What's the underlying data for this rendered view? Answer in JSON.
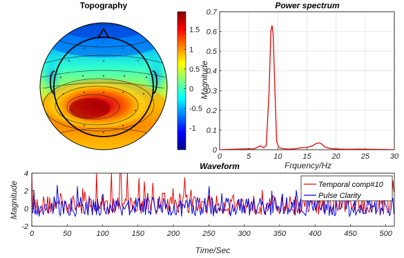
{
  "chart_data": [
    {
      "type": "heatmap",
      "title": "Topography",
      "colorbar": {
        "ticks": [
          "1.5",
          "1",
          "0.5",
          "0",
          "-0.5",
          "-1"
        ],
        "tick_values": [
          1.5,
          1,
          0.5,
          0,
          -0.5,
          -1
        ],
        "range": [
          -1.55,
          1.95
        ]
      },
      "colormap": "jet",
      "description_values": {
        "peak_value": 1.9,
        "peak_region": "left-central",
        "minimum_value": -1.5,
        "minimum_region": "frontal rim"
      }
    },
    {
      "type": "line",
      "title": "Power spectrum",
      "xlabel": "Frquency/Hz",
      "ylabel": "Magnitude",
      "xlim": [
        0,
        30
      ],
      "ylim": [
        0,
        0.7
      ],
      "x_ticks": [
        "0",
        "5",
        "10",
        "15",
        "20",
        "25",
        "30"
      ],
      "y_ticks": [
        "0",
        "0.1",
        "0.2",
        "0.3",
        "0.4",
        "0.5",
        "0.6",
        "0.7"
      ],
      "grid": true,
      "series": [
        {
          "color": "#e00000",
          "x": [
            0,
            2,
            4,
            6,
            7,
            7.5,
            8,
            8.5,
            8.8,
            9.0,
            9.2,
            9.5,
            9.8,
            10.2,
            11,
            12,
            13,
            14,
            15,
            16,
            16.5,
            17,
            17.5,
            18,
            19,
            20,
            22,
            24,
            26,
            28,
            30
          ],
          "y": [
            0,
            0.002,
            0.004,
            0.005,
            0.02,
            0.01,
            0.02,
            0.3,
            0.6,
            0.63,
            0.58,
            0.3,
            0.04,
            0.01,
            0.005,
            0.003,
            0.005,
            0.01,
            0.012,
            0.02,
            0.03,
            0.035,
            0.03,
            0.015,
            0.006,
            0.004,
            0.002,
            0.003,
            0.002,
            0.001,
            0
          ]
        }
      ]
    },
    {
      "type": "line",
      "title": "Waveform",
      "xlabel": "Time/Sec",
      "ylabel": "Magnitude",
      "xlim": [
        0,
        512
      ],
      "ylim": [
        -2,
        4
      ],
      "x_ticks": [
        "0",
        "50",
        "100",
        "150",
        "200",
        "250",
        "300",
        "350",
        "400",
        "450",
        "500"
      ],
      "y_ticks": [
        "-2",
        "0",
        "2",
        "4"
      ],
      "legend": "top-right",
      "series": [
        {
          "name": "Temporal comp#10",
          "color": "#e00000",
          "range": [
            -1.5,
            4
          ],
          "mean": 0.4
        },
        {
          "name": "Pulse Clarity",
          "color": "#0000dd",
          "range": [
            -2,
            3
          ],
          "mean": 0.2
        }
      ]
    }
  ]
}
